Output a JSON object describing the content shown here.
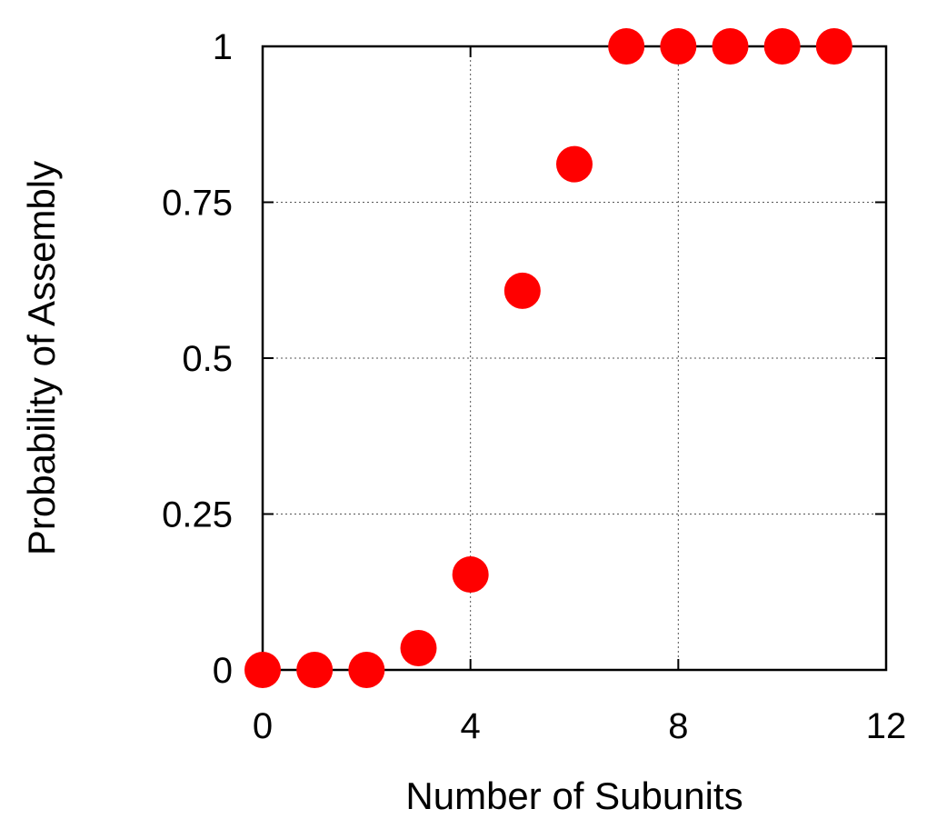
{
  "chart_data": {
    "type": "scatter",
    "title": "",
    "xlabel": "Number of Subunits",
    "ylabel": "Probability of Assembly",
    "xlim": [
      0,
      12
    ],
    "ylim": [
      0,
      1
    ],
    "xticks": [
      0,
      4,
      8,
      12
    ],
    "yticks": [
      0,
      0.25,
      0.5,
      0.75,
      1
    ],
    "xtick_labels": [
      "0",
      "4",
      "8",
      "12"
    ],
    "ytick_labels": [
      "0",
      "0.25",
      "0.5",
      "0.75",
      "1"
    ],
    "grid": true,
    "marker_color": "#ff0000",
    "series": [
      {
        "x": [
          0,
          1,
          2,
          3,
          4,
          5,
          6,
          7,
          8,
          9,
          10,
          11
        ],
        "y": [
          0,
          0,
          0,
          0.035,
          0.153,
          0.608,
          0.811,
          1,
          1,
          1,
          1,
          1
        ]
      }
    ]
  }
}
